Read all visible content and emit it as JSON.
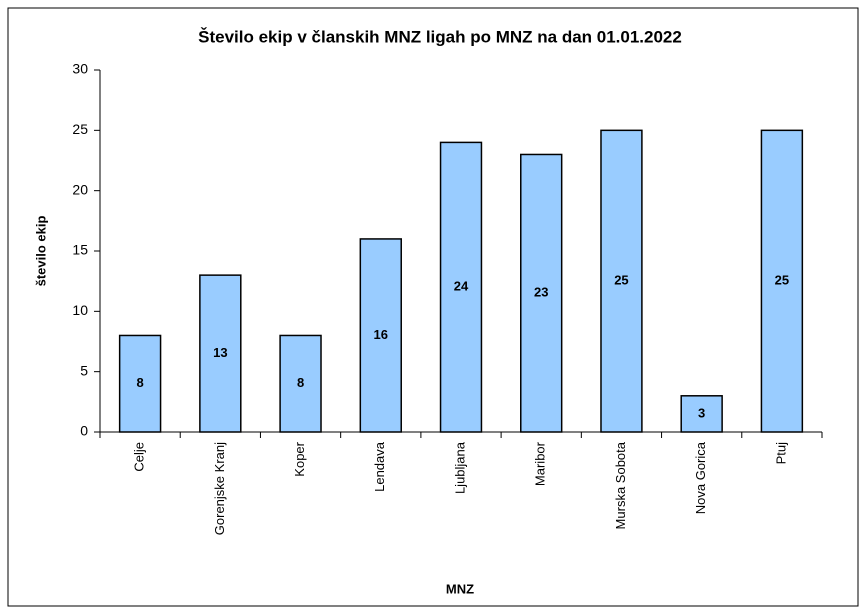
{
  "chart_data": {
    "type": "bar",
    "title": "Število ekip v članskih MNZ ligah po MNZ na dan 01.01.2022",
    "x_label": "MNZ",
    "y_label": "število ekip",
    "categories": [
      "Celje",
      "Gorenjske Kranj",
      "Koper",
      "Lendava",
      "Ljubljana",
      "Maribor",
      "Murska Sobota",
      "Nova Gorica",
      "Ptuj"
    ],
    "values": [
      8,
      13,
      8,
      16,
      24,
      23,
      25,
      3,
      25
    ],
    "color": "#99ccff",
    "ylim": [
      0,
      30
    ],
    "yticks": [
      0,
      5,
      10,
      15,
      20,
      25,
      30
    ],
    "grid": false
  }
}
